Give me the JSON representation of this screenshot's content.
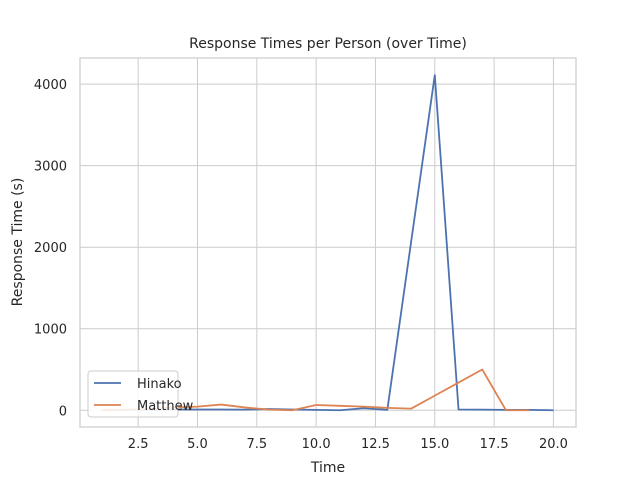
{
  "chart_data": {
    "type": "line",
    "title": "Response Times per Person (over Time)",
    "xlabel": "Time",
    "ylabel": "Response Time (s)",
    "xlim": [
      0.05,
      20.95
    ],
    "ylim": [
      -205,
      4320
    ],
    "x_ticks": [
      2.5,
      5.0,
      7.5,
      10.0,
      12.5,
      15.0,
      17.5,
      20.0
    ],
    "x_tick_labels": [
      "2.5",
      "5.0",
      "7.5",
      "10.0",
      "12.5",
      "15.0",
      "17.5",
      "20.0"
    ],
    "y_ticks": [
      0,
      1000,
      2000,
      3000,
      4000
    ],
    "y_tick_labels": [
      "0",
      "1000",
      "2000",
      "3000",
      "4000"
    ],
    "grid": true,
    "legend_position": "lower-left",
    "series": [
      {
        "name": "Hinako",
        "color": "#4c72b0",
        "x": [
          1,
          2,
          3,
          4,
          5,
          6,
          7,
          8,
          9,
          10,
          11,
          12,
          13,
          14,
          15,
          16,
          17,
          18,
          19,
          20
        ],
        "values": [
          5,
          5,
          8,
          10,
          10,
          10,
          8,
          15,
          10,
          5,
          0,
          25,
          5,
          2060,
          4110,
          10,
          8,
          5,
          5,
          0
        ]
      },
      {
        "name": "Matthew",
        "color": "#dd8452",
        "x": [
          1,
          2,
          3,
          4,
          5,
          6,
          7,
          8,
          9,
          10,
          11,
          12,
          13,
          14,
          15,
          16,
          17,
          18,
          19
        ],
        "values": [
          3,
          8,
          15,
          35,
          45,
          70,
          35,
          8,
          0,
          65,
          55,
          45,
          30,
          20,
          180,
          340,
          500,
          0,
          0
        ]
      }
    ]
  }
}
